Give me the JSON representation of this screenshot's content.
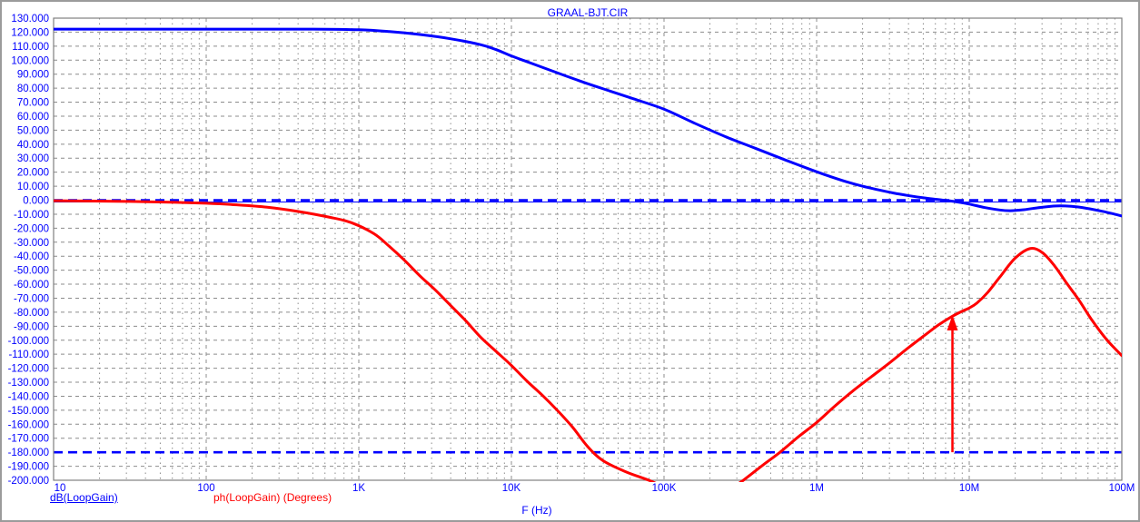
{
  "window": {
    "title": "GRAAL-BJT.CIR"
  },
  "axes": {
    "x_label": "F (Hz)",
    "x_tick_labels": [
      "10",
      "100",
      "1K",
      "10K",
      "100K",
      "1M",
      "10M",
      "100M"
    ],
    "y_tick_labels": [
      "130.000",
      "120.000",
      "110.000",
      "100.000",
      "90.000",
      "80.000",
      "70.000",
      "60.000",
      "50.000",
      "40.000",
      "30.000",
      "20.000",
      "10.000",
      "0.000",
      "-10.000",
      "-20.000",
      "-30.000",
      "-40.000",
      "-50.000",
      "-60.000",
      "-70.000",
      "-80.000",
      "-90.000",
      "-100.000",
      "-110.000",
      "-120.000",
      "-130.000",
      "-140.000",
      "-150.000",
      "-160.000",
      "-170.000",
      "-180.000",
      "-190.000",
      "-200.000"
    ]
  },
  "legend": [
    {
      "label": "dB(LoopGain)",
      "color": "#0000ff",
      "underlined": true
    },
    {
      "label": "ph(LoopGain) (Degrees)",
      "color": "#ff0000",
      "underlined": false
    }
  ],
  "colors": {
    "gain": "#0000ff",
    "phase": "#ff0000",
    "grid": "#8c8c8c",
    "frame": "#808080",
    "reference": "#0000ff",
    "annotation": "#ff0000",
    "text": "#0000ff",
    "background": "#ffffff"
  },
  "chart_data": {
    "type": "line",
    "title": "GRAAL-BJT.CIR",
    "xlabel": "F (Hz)",
    "x_scale": "log",
    "x_unit": "log10_hz",
    "xlim_log10": [
      1,
      8
    ],
    "ylim": [
      -200,
      130
    ],
    "y_tick_step": 10,
    "grid": true,
    "legend_position": "bottom-left",
    "series": [
      {
        "name": "dB(LoopGain)",
        "unit": "dB",
        "color": "#0000ff",
        "points": [
          [
            1.0,
            122.1
          ],
          [
            1.6,
            122.1
          ],
          [
            2.2,
            122.1
          ],
          [
            2.7,
            122.1
          ],
          [
            3.0,
            121.7
          ],
          [
            3.2,
            120.4
          ],
          [
            3.4,
            118.3
          ],
          [
            3.6,
            115.3
          ],
          [
            3.8,
            111.0
          ],
          [
            3.9,
            107.5
          ],
          [
            4.0,
            103.0
          ],
          [
            4.1,
            99.0
          ],
          [
            4.2,
            95.0
          ],
          [
            4.35,
            89.0
          ],
          [
            4.5,
            83.2
          ],
          [
            4.65,
            77.8
          ],
          [
            4.8,
            72.4
          ],
          [
            5.0,
            65.0
          ],
          [
            5.2,
            55.0
          ],
          [
            5.4,
            45.5
          ],
          [
            5.6,
            37.0
          ],
          [
            5.8,
            28.5
          ],
          [
            6.0,
            20.3
          ],
          [
            6.1,
            16.5
          ],
          [
            6.2,
            13.0
          ],
          [
            6.3,
            10.0
          ],
          [
            6.4,
            7.5
          ],
          [
            6.5,
            5.2
          ],
          [
            6.6,
            3.3
          ],
          [
            6.7,
            1.7
          ],
          [
            6.8,
            0.4
          ],
          [
            6.9,
            -0.9
          ],
          [
            7.0,
            -2.8
          ],
          [
            7.1,
            -5.2
          ],
          [
            7.2,
            -7.0
          ],
          [
            7.27,
            -7.5
          ],
          [
            7.35,
            -6.9
          ],
          [
            7.45,
            -5.4
          ],
          [
            7.57,
            -4.1
          ],
          [
            7.67,
            -4.4
          ],
          [
            7.77,
            -5.8
          ],
          [
            7.87,
            -7.9
          ],
          [
            7.95,
            -9.9
          ],
          [
            8.0,
            -11.3
          ]
        ]
      },
      {
        "name": "ph(LoopGain)",
        "unit": "Degrees",
        "color": "#ff0000",
        "points": [
          [
            1.0,
            -0.4
          ],
          [
            1.5,
            -0.9
          ],
          [
            1.8,
            -1.5
          ],
          [
            2.0,
            -2.2
          ],
          [
            2.2,
            -3.3
          ],
          [
            2.4,
            -5.0
          ],
          [
            2.6,
            -8.0
          ],
          [
            2.8,
            -12.0
          ],
          [
            2.95,
            -16.0
          ],
          [
            3.1,
            -24.0
          ],
          [
            3.2,
            -33.0
          ],
          [
            3.3,
            -43.0
          ],
          [
            3.4,
            -54.0
          ],
          [
            3.5,
            -64.0
          ],
          [
            3.6,
            -75.0
          ],
          [
            3.7,
            -86.0
          ],
          [
            3.8,
            -98.0
          ],
          [
            3.9,
            -108.0
          ],
          [
            4.0,
            -118.0
          ],
          [
            4.1,
            -129.0
          ],
          [
            4.2,
            -139.0
          ],
          [
            4.3,
            -150.0
          ],
          [
            4.4,
            -162.0
          ],
          [
            4.5,
            -176.0
          ],
          [
            4.6,
            -186.0
          ],
          [
            4.75,
            -194.0
          ],
          [
            4.9,
            -200.0
          ],
          [
            5.05,
            -207.0
          ],
          [
            5.2,
            -211.0
          ],
          [
            5.35,
            -210.0
          ],
          [
            5.45,
            -205.0
          ],
          [
            5.52,
            -200.0
          ],
          [
            5.65,
            -189.0
          ],
          [
            5.76,
            -180.0
          ],
          [
            5.88,
            -169.0
          ],
          [
            6.0,
            -158.8
          ],
          [
            6.12,
            -147.0
          ],
          [
            6.24,
            -136.0
          ],
          [
            6.36,
            -126.0
          ],
          [
            6.48,
            -116.0
          ],
          [
            6.6,
            -105.5
          ],
          [
            6.72,
            -95.5
          ],
          [
            6.8,
            -89.0
          ],
          [
            6.88,
            -83.5
          ],
          [
            6.95,
            -79.5
          ],
          [
            7.0,
            -77.0
          ],
          [
            7.05,
            -73.5
          ],
          [
            7.12,
            -66.0
          ],
          [
            7.2,
            -55.0
          ],
          [
            7.3,
            -41.5
          ],
          [
            7.4,
            -34.5
          ],
          [
            7.48,
            -37.5
          ],
          [
            7.56,
            -47.0
          ],
          [
            7.64,
            -59.5
          ],
          [
            7.72,
            -71.5
          ],
          [
            7.8,
            -85.0
          ],
          [
            7.9,
            -99.5
          ],
          [
            8.0,
            -111.0
          ]
        ]
      }
    ],
    "reference_lines": [
      {
        "y": 0,
        "style": "dashed",
        "color": "#0000ff",
        "solid_axis": true
      },
      {
        "y": -180,
        "style": "dashed",
        "color": "#0000ff",
        "solid_axis": false
      }
    ],
    "annotations": [
      {
        "type": "vertical-arrow",
        "description": "phase margin marker at gain crossover",
        "x_log10_hz": 6.89,
        "from_y": -180,
        "to_y": -82,
        "color": "#ff0000"
      }
    ]
  }
}
